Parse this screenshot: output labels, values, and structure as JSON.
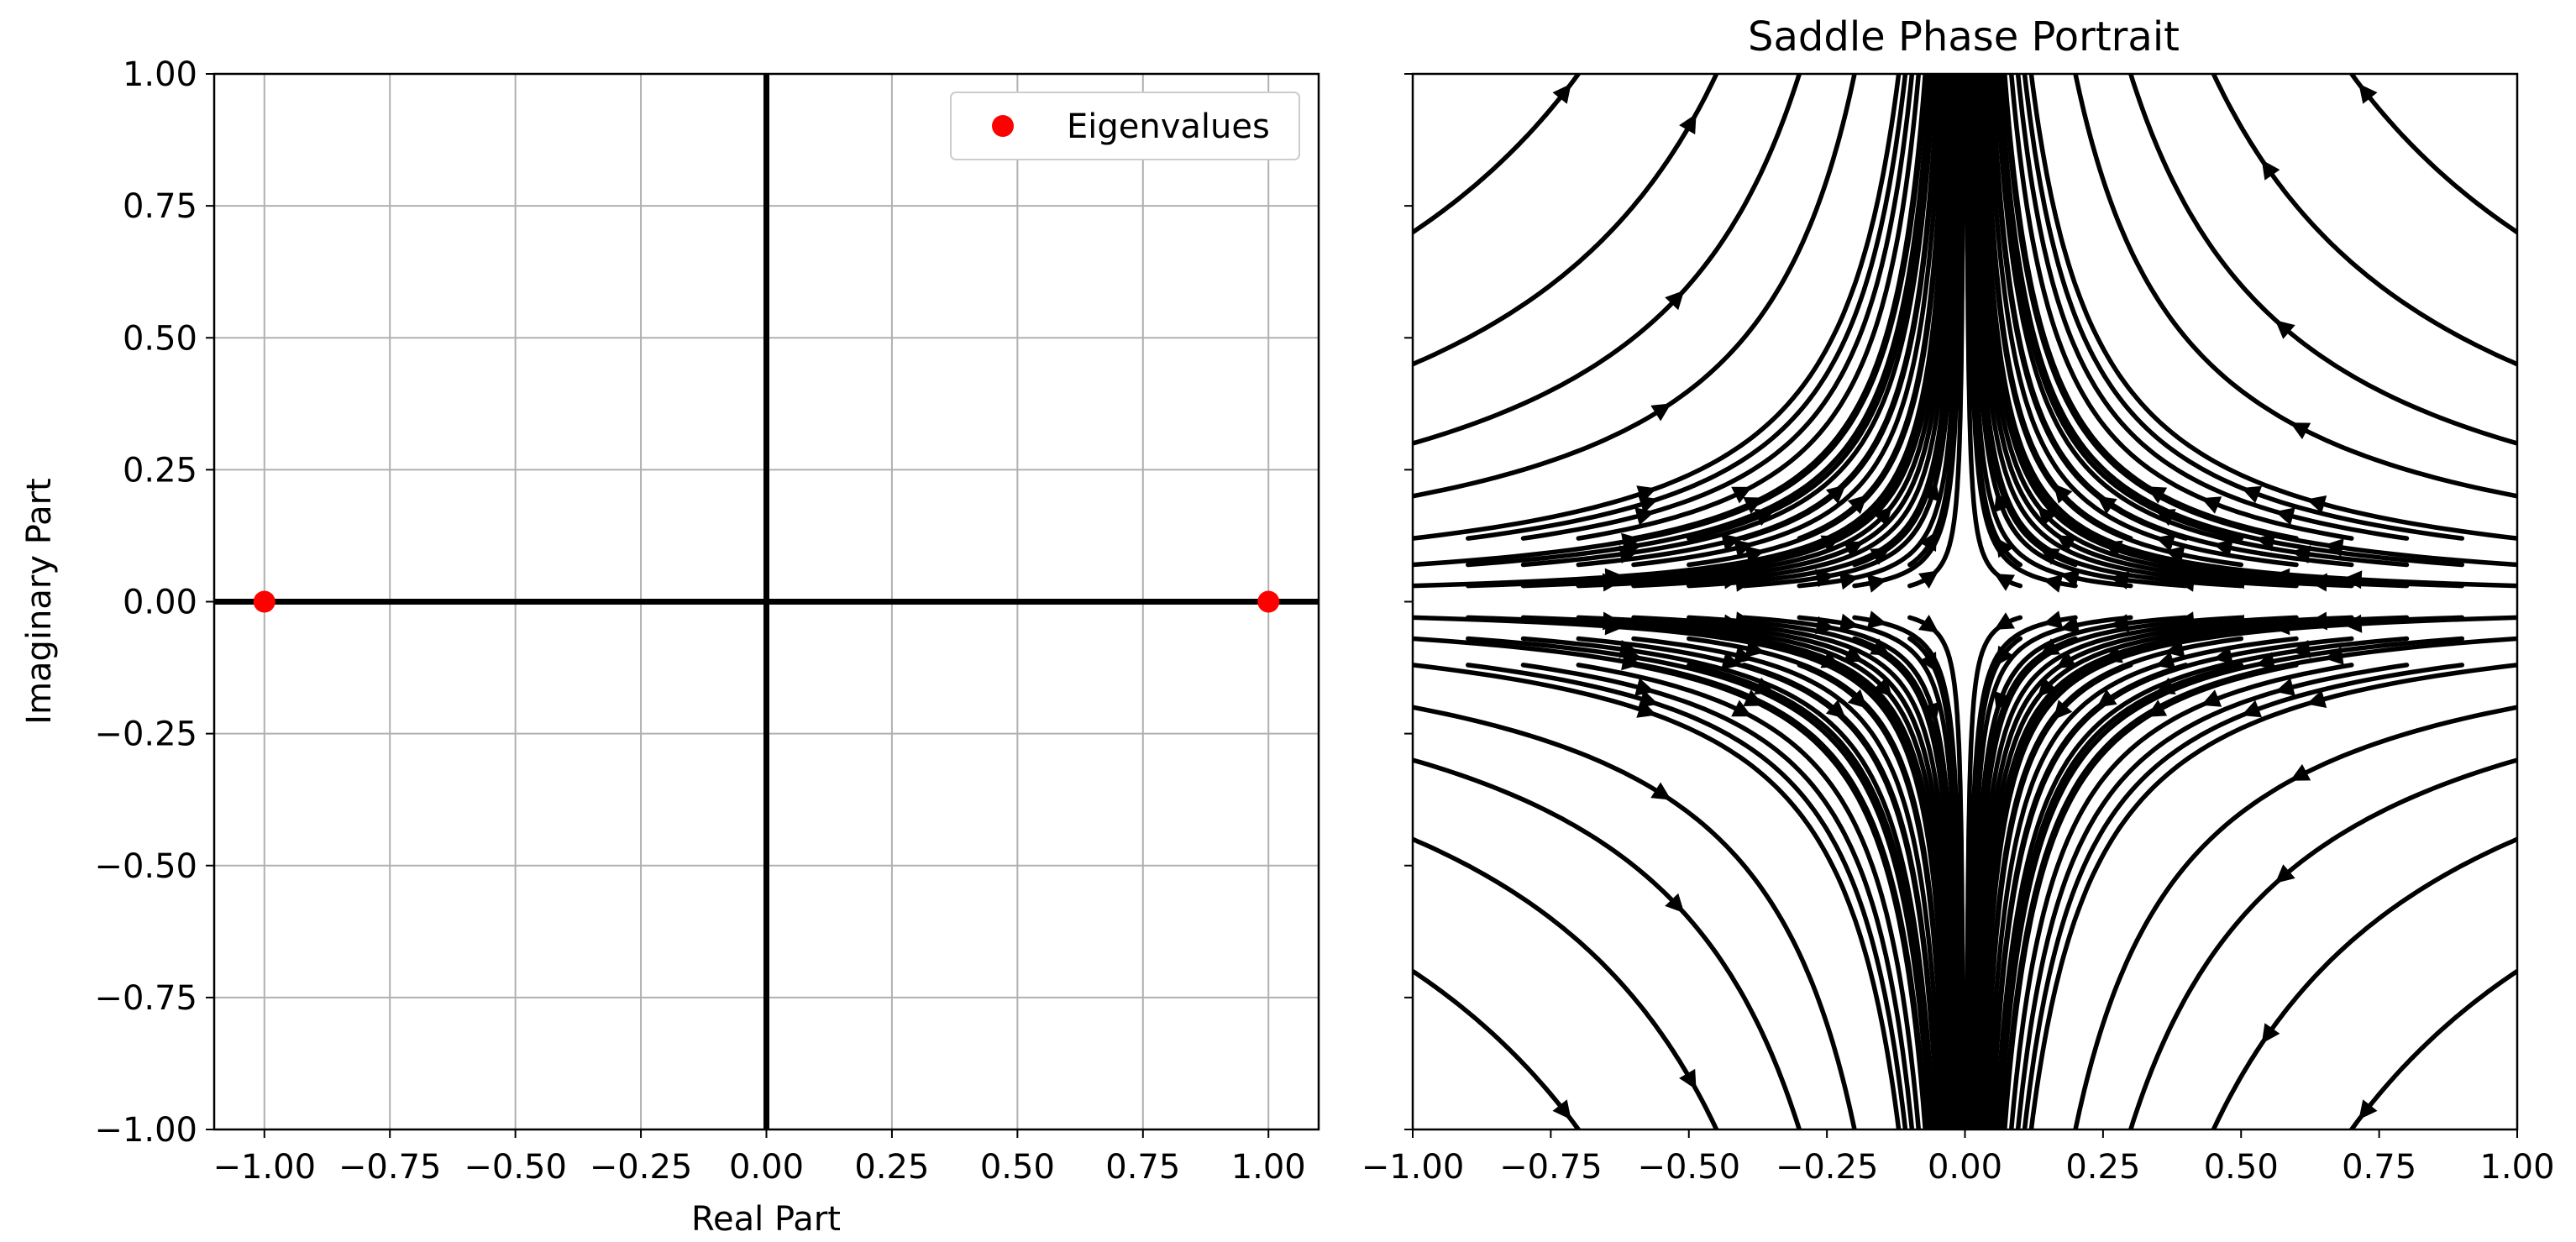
{
  "chart_data": [
    {
      "type": "scatter",
      "title": "",
      "xlabel": "Real Part",
      "ylabel": "Imaginary Part",
      "xlim": [
        -1.1,
        1.1
      ],
      "ylim": [
        -1.0,
        1.0
      ],
      "grid": true,
      "xticks": [
        -1.0,
        -0.75,
        -0.5,
        -0.25,
        0.0,
        0.25,
        0.5,
        0.75,
        1.0
      ],
      "yticks": [
        -1.0,
        -0.75,
        -0.5,
        -0.25,
        0.0,
        0.25,
        0.5,
        0.75,
        1.0
      ],
      "xtick_labels": [
        "−1.00",
        "−0.75",
        "−0.50",
        "−0.25",
        "0.00",
        "0.25",
        "0.50",
        "0.75",
        "1.00"
      ],
      "ytick_labels": [
        "−1.00",
        "−0.75",
        "−0.50",
        "−0.25",
        "0.00",
        "0.25",
        "0.50",
        "0.75",
        "1.00"
      ],
      "series": [
        {
          "name": "Eigenvalues",
          "color": "#ff0000",
          "x": [
            -1.0,
            1.0
          ],
          "y": [
            0.0,
            0.0
          ]
        }
      ],
      "reference_lines": {
        "x": 0,
        "y": 0,
        "color": "#000000"
      },
      "legend": {
        "placement": "top-right",
        "entries": [
          "Eigenvalues"
        ]
      }
    },
    {
      "type": "streamplot",
      "title": "Saddle Phase Portrait",
      "xlabel": "",
      "ylabel": "",
      "xlim": [
        -1.0,
        1.0
      ],
      "ylim": [
        -1.0,
        1.0
      ],
      "grid": false,
      "system": {
        "dx_dt": "-x",
        "dy_dt": "y",
        "saddle_point": [
          0,
          0
        ]
      },
      "color": "#000000",
      "xticks": [
        -1.0,
        -0.75,
        -0.5,
        -0.25,
        0.0,
        0.25,
        0.5,
        0.75,
        1.0
      ],
      "xtick_labels": [
        "−1.00",
        "−0.75",
        "−0.50",
        "−0.25",
        "0.00",
        "0.25",
        "0.50",
        "0.75",
        "1.00"
      ],
      "yticks": [
        -1.0,
        -0.75,
        -0.5,
        -0.25,
        0.0,
        0.25,
        0.5,
        0.75,
        1.0
      ],
      "streamlines": {
        "entry_x": [
          -1.0,
          -0.9,
          -0.8,
          -0.7,
          -0.6,
          -0.5,
          -0.4,
          -0.3,
          -0.2,
          -0.1,
          0.1,
          0.2,
          0.3,
          0.4,
          0.5,
          0.6,
          0.7,
          0.8,
          0.9,
          1.0
        ],
        "y_start": [
          0.03,
          0.07,
          0.12,
          0.2,
          0.3,
          0.45,
          0.7
        ],
        "arrow_s": [
          0.45,
          0.35,
          0.22
        ]
      }
    }
  ]
}
